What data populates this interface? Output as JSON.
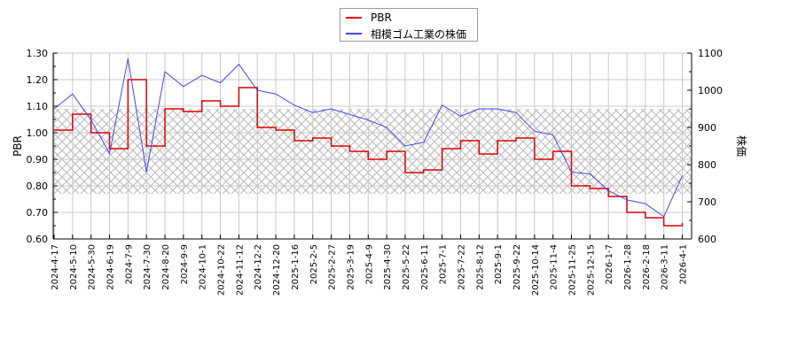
{
  "chart_data": {
    "type": "line",
    "title": "",
    "legend": {
      "position": "top-center",
      "entries": [
        {
          "label": "PBR",
          "color": "#dd0000"
        },
        {
          "label": "相模ゴム工業の株価",
          "color": "#4444ee"
        }
      ]
    },
    "left_axis": {
      "label": "PBR",
      "ylim": [
        0.6,
        1.3
      ],
      "ticks": [
        "0.60",
        "0.70",
        "0.80",
        "0.90",
        "1.00",
        "1.10",
        "1.20",
        "1.30"
      ]
    },
    "right_axis": {
      "label": "株価",
      "ylim": [
        600,
        1100
      ],
      "ticks": [
        "600",
        "700",
        "800",
        "900",
        "1000",
        "1100"
      ]
    },
    "grid": true,
    "shaded_band": {
      "pbr_from": 0.77,
      "pbr_to": 1.09,
      "pattern": "crosshatch"
    },
    "x_tick_labels": [
      "2024-4-17",
      "2024-5-10",
      "2024-5-30",
      "2024-6-19",
      "2024-7-9",
      "2024-7-30",
      "2024-8-20",
      "2024-9-9",
      "2024-10-1",
      "2024-10-22",
      "2024-11-12",
      "2024-12-2",
      "2024-12-20",
      "2025-1-16",
      "2025-2-5",
      "2025-2-27",
      "2025-3-19",
      "2025-4-9",
      "2025-4-30",
      "2025-5-22",
      "2025-6-11",
      "2025-7-1",
      "2025-7-22",
      "2025-8-12",
      "2025-9-1",
      "2025-9-22",
      "2025-10-14",
      "2025-11-4",
      "2025-11-25",
      "2025-12-15",
      "2026-1-7",
      "2026-1-28",
      "2026-2-18",
      "2026-3-11",
      "2026-4-1"
    ],
    "series": [
      {
        "name": "PBR",
        "axis": "left",
        "color": "#dd0000",
        "x_index": [
          0,
          1,
          2,
          3,
          4,
          5,
          6,
          7,
          8,
          9,
          10,
          11,
          12,
          13,
          14,
          15,
          16,
          17,
          18,
          19,
          20,
          21,
          22,
          23,
          24,
          25,
          26,
          27,
          28,
          29,
          30,
          31,
          32,
          33,
          34
        ],
        "values": [
          1.01,
          1.07,
          1.0,
          0.94,
          1.2,
          0.95,
          1.09,
          1.08,
          1.12,
          1.1,
          1.17,
          1.02,
          1.01,
          0.97,
          0.98,
          0.95,
          0.93,
          0.9,
          0.93,
          0.85,
          0.86,
          0.94,
          0.97,
          0.92,
          0.97,
          0.98,
          0.9,
          0.93,
          0.8,
          0.79,
          0.76,
          0.7,
          0.68,
          0.65,
          0.66
        ]
      },
      {
        "name": "相模ゴム工業の株価",
        "axis": "right",
        "color": "#4444ee",
        "x_index": [
          0,
          1,
          2,
          3,
          4,
          5,
          6,
          7,
          8,
          9,
          10,
          11,
          12,
          13,
          14,
          15,
          16,
          17,
          18,
          19,
          20,
          21,
          22,
          23,
          24,
          25,
          26,
          27,
          28,
          29,
          30,
          31,
          32,
          33,
          34
        ],
        "values": [
          950,
          990,
          920,
          830,
          1085,
          780,
          1050,
          1010,
          1040,
          1020,
          1070,
          1000,
          990,
          960,
          940,
          950,
          935,
          920,
          900,
          850,
          860,
          960,
          930,
          950,
          950,
          940,
          890,
          880,
          780,
          775,
          730,
          705,
          695,
          660,
          770
        ]
      }
    ]
  }
}
